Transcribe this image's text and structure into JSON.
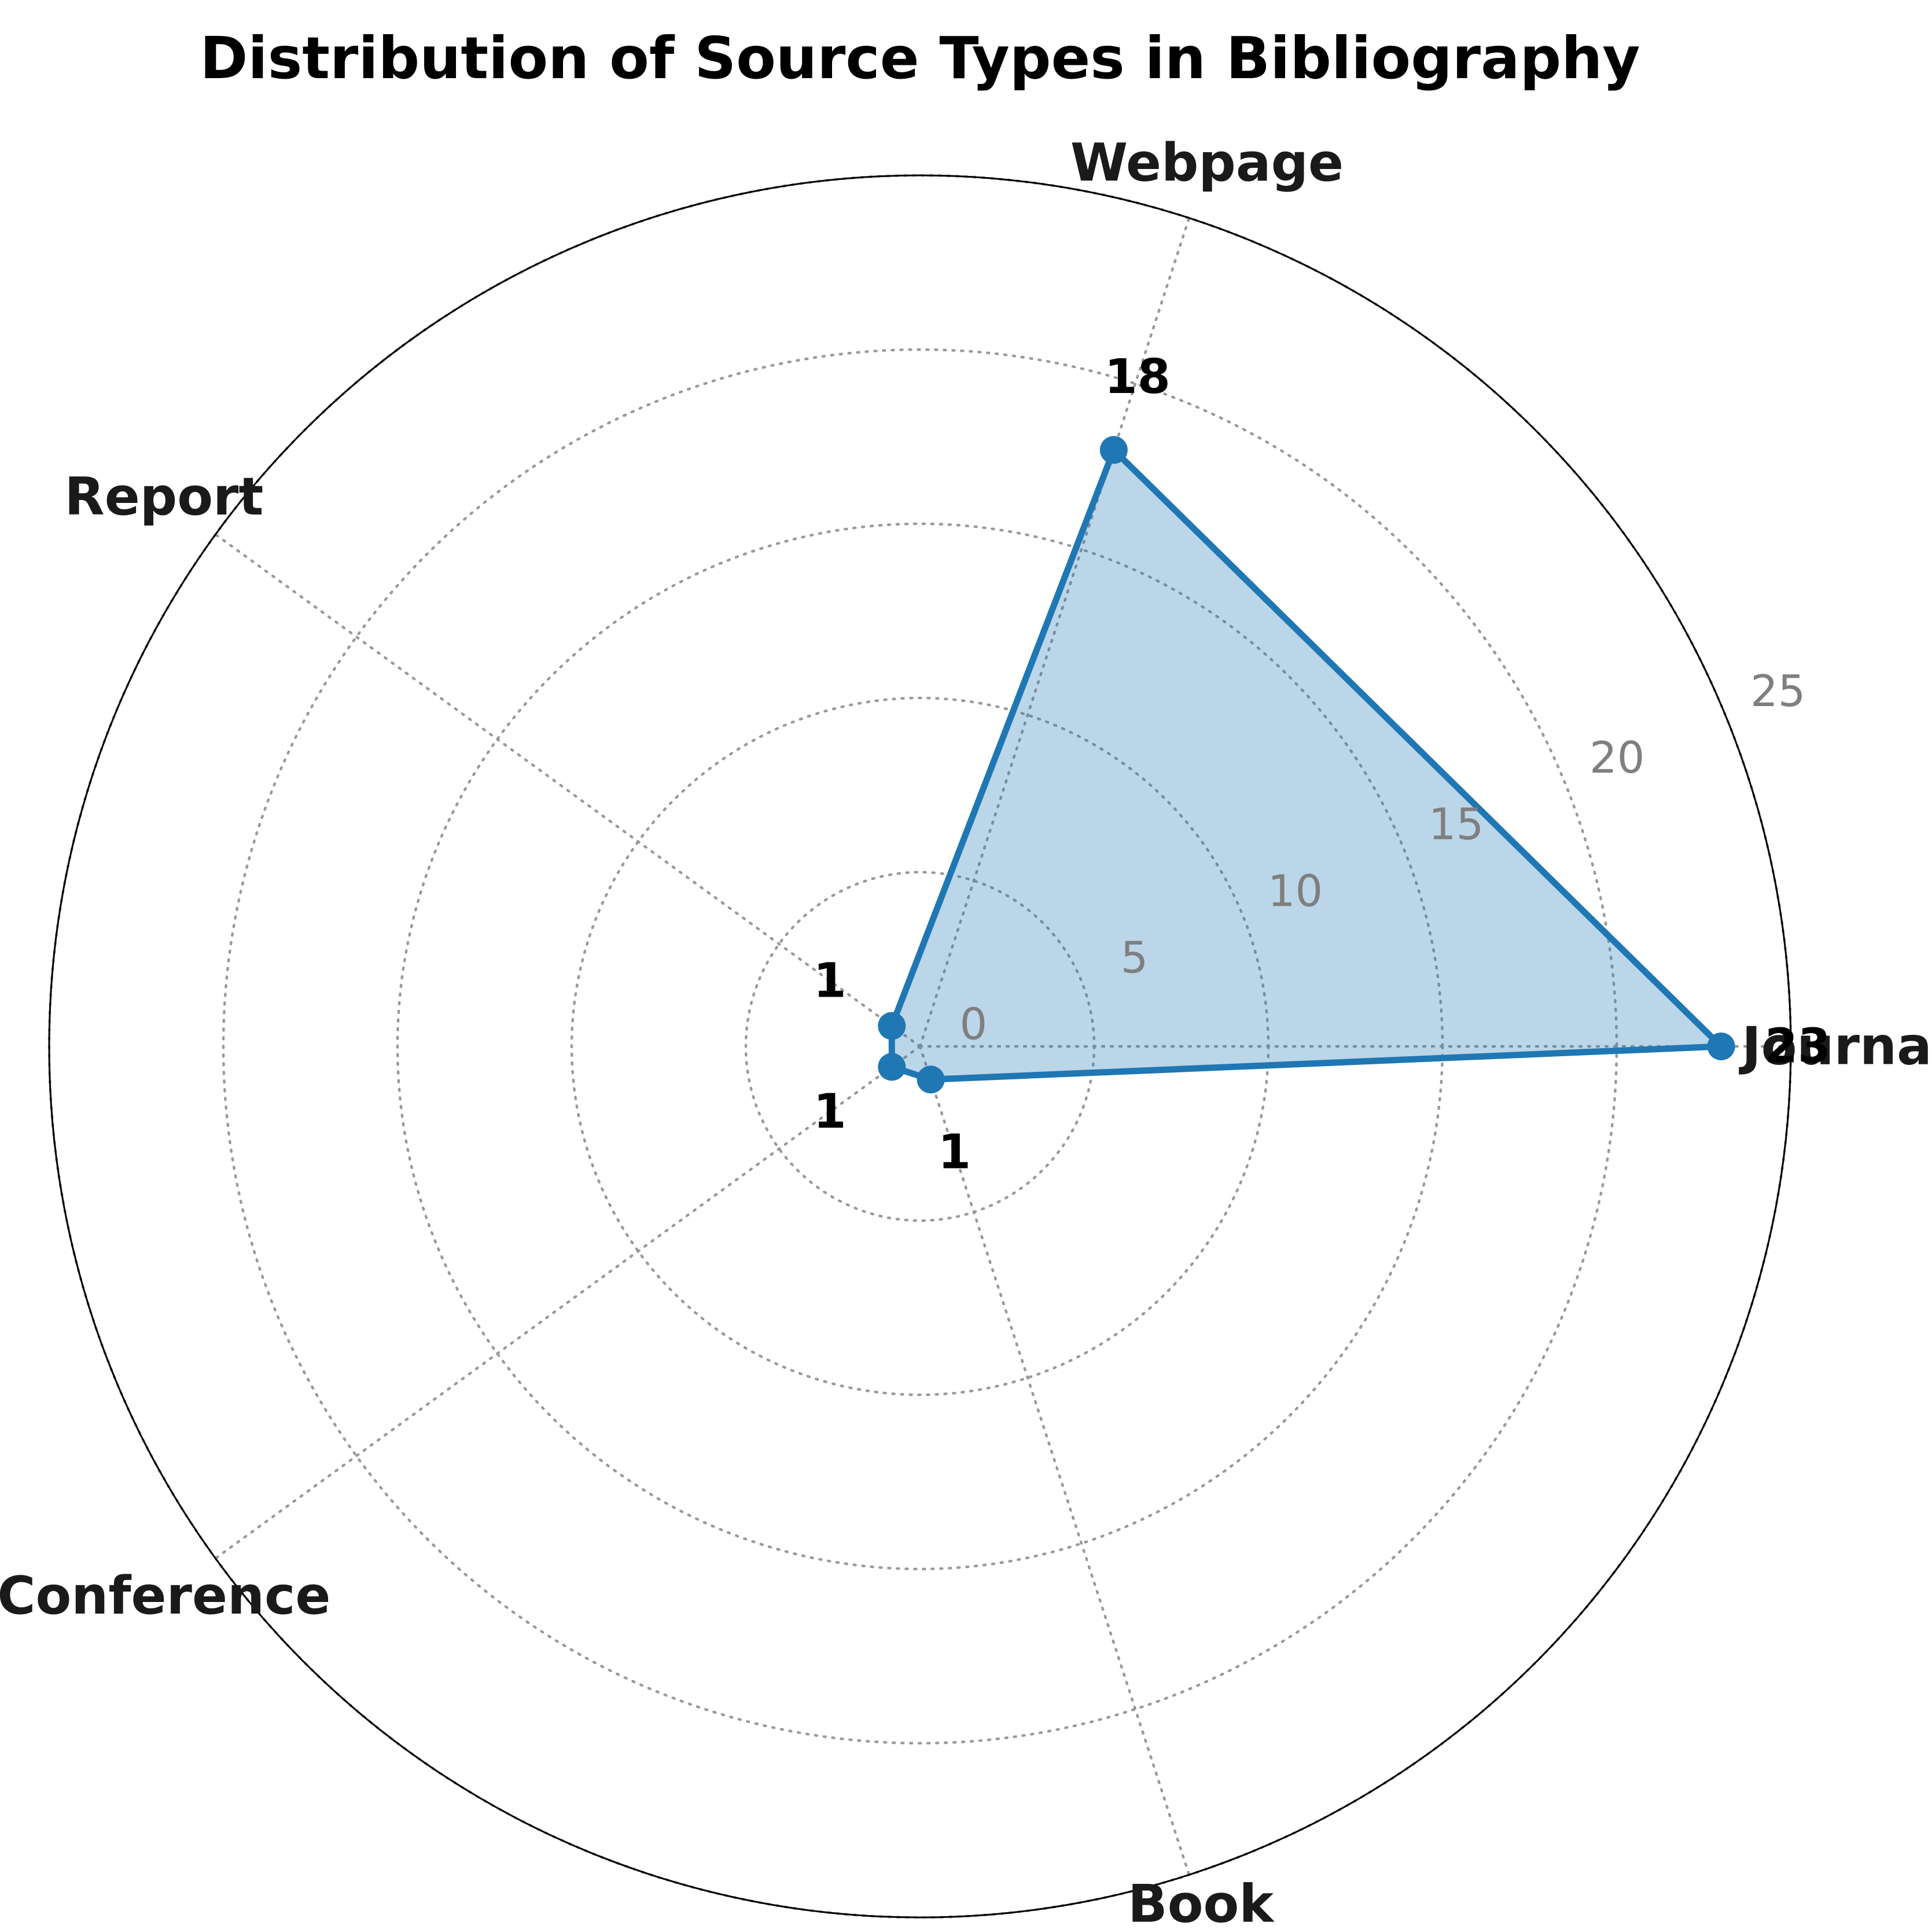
{
  "title": "Distribution of Source Types in Bibliography",
  "chart_data": {
    "type": "radar",
    "categories": [
      "Journal",
      "Webpage",
      "Report",
      "Conference",
      "Book"
    ],
    "values": [
      23,
      18,
      1,
      1,
      1
    ],
    "value_labels": [
      "23",
      "18",
      "1",
      "1",
      "1"
    ],
    "radial_ticks": [
      0,
      5,
      10,
      15,
      20,
      25
    ],
    "rmax": 25,
    "start_angle_deg": 0,
    "direction": "counterclockwise",
    "tick_label_angle_deg": 22.5,
    "grid_style": "dotted",
    "legend": "none",
    "line_color": "#1f77b4",
    "fill_color": "#1f77b4",
    "fill_opacity": 0.3,
    "marker": "circle",
    "tick_label_color": "#7f7f7f",
    "axis_label_color": "#1a1a1a"
  }
}
